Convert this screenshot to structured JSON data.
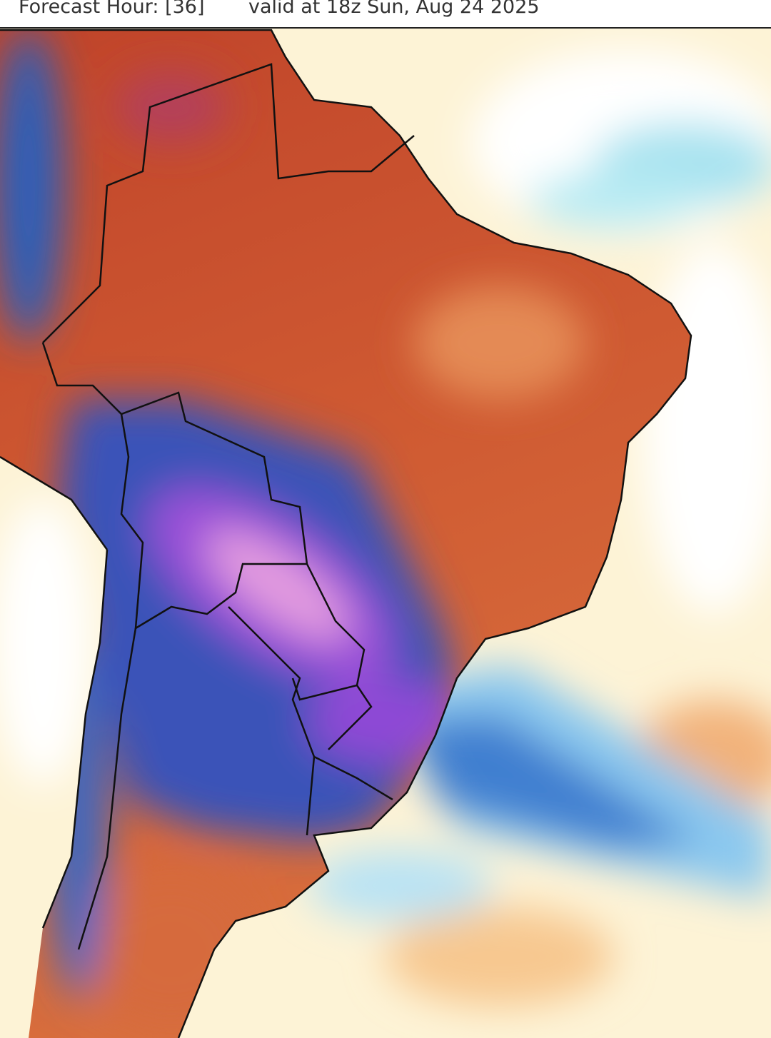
{
  "header": {
    "forecast_hour": "Forecast Hour: [36]",
    "valid": "valid at 18z Sun, Aug 24 2025"
  }
}
